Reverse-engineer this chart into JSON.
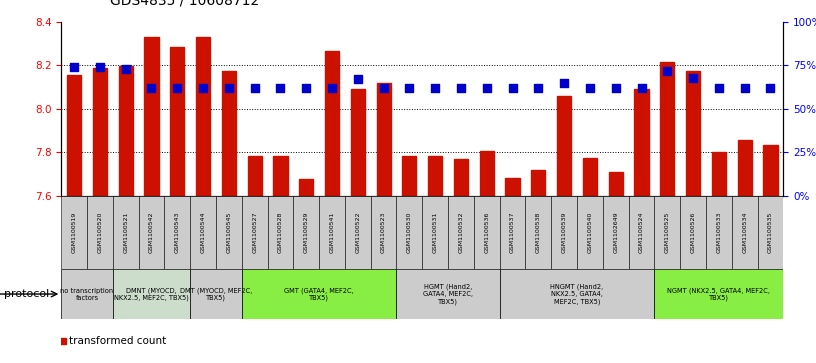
{
  "title": "GDS4835 / 10608712",
  "samples": [
    "GSM1100519",
    "GSM1100520",
    "GSM1100521",
    "GSM1100542",
    "GSM1100543",
    "GSM1100544",
    "GSM1100545",
    "GSM1100527",
    "GSM1100528",
    "GSM1100529",
    "GSM1100541",
    "GSM1100522",
    "GSM1100523",
    "GSM1100530",
    "GSM1100531",
    "GSM1100532",
    "GSM1100536",
    "GSM1100537",
    "GSM1100538",
    "GSM1100539",
    "GSM1100540",
    "GSM1102649",
    "GSM1100524",
    "GSM1100525",
    "GSM1100526",
    "GSM1100533",
    "GSM1100534",
    "GSM1100535"
  ],
  "bar_values": [
    8.155,
    8.19,
    8.195,
    8.33,
    8.285,
    8.33,
    8.175,
    7.785,
    7.785,
    7.68,
    8.265,
    8.09,
    8.12,
    7.785,
    7.785,
    7.77,
    7.805,
    7.685,
    7.72,
    8.06,
    7.775,
    7.71,
    8.09,
    8.215,
    8.175,
    7.8,
    7.855,
    7.835
  ],
  "percentile_values": [
    74,
    74,
    73,
    62,
    62,
    62,
    62,
    62,
    62,
    62,
    62,
    67,
    62,
    62,
    62,
    62,
    62,
    62,
    62,
    65,
    62,
    62,
    62,
    72,
    68,
    62,
    62,
    62
  ],
  "ylim_left": [
    7.6,
    8.4
  ],
  "ylim_right": [
    0,
    100
  ],
  "yticks_left": [
    7.6,
    7.8,
    8.0,
    8.2,
    8.4
  ],
  "yticks_right": [
    0,
    25,
    50,
    75,
    100
  ],
  "bar_color": "#cc1100",
  "dot_color": "#0000cc",
  "bg_color": "#ffffff",
  "protocol_groups": [
    {
      "label": "no transcription\nfactors",
      "start": 0,
      "end": 2,
      "color": "#cccccc"
    },
    {
      "label": "DMNT (MYOCD,\nNKX2.5, MEF2C, TBX5)",
      "start": 2,
      "end": 5,
      "color": "#ccddcc"
    },
    {
      "label": "DMT (MYOCD, MEF2C,\nTBX5)",
      "start": 5,
      "end": 7,
      "color": "#cccccc"
    },
    {
      "label": "GMT (GATA4, MEF2C,\nTBX5)",
      "start": 7,
      "end": 13,
      "color": "#88ee44"
    },
    {
      "label": "HGMT (Hand2,\nGATA4, MEF2C,\nTBX5)",
      "start": 13,
      "end": 17,
      "color": "#cccccc"
    },
    {
      "label": "HNGMT (Hand2,\nNKX2.5, GATA4,\nMEF2C, TBX5)",
      "start": 17,
      "end": 23,
      "color": "#cccccc"
    },
    {
      "label": "NGMT (NKX2.5, GATA4, MEF2C,\nTBX5)",
      "start": 23,
      "end": 28,
      "color": "#88ee44"
    }
  ],
  "bar_width": 0.55,
  "dot_size": 35,
  "tick_box_color": "#cccccc"
}
